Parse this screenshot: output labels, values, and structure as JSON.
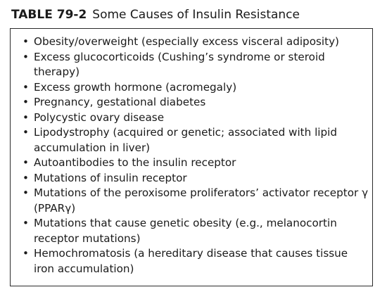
{
  "table": {
    "number": "TABLE 79-2",
    "caption": "Some Causes of Insulin Resistance",
    "bullet_glyph": "•",
    "items": [
      "Obesity/overweight (especially excess visceral adiposity)",
      "Excess glucocorticoids (Cushing’s syndrome or steroid therapy)",
      "Excess growth hormone (acromegaly)",
      "Pregnancy, gestational diabetes",
      "Polycystic ovary disease",
      "Lipodystrophy (acquired or genetic; associated with lipid accumulation in liver)",
      "Autoantibodies to the insulin receptor",
      "Mutations of insulin receptor",
      "Mutations of the peroxisome proliferators’ activator receptor γ (PPARγ)",
      "Mutations that cause genetic obesity (e.g., melanocortin receptor mutations)",
      "Hemochromatosis (a hereditary disease that causes tissue iron accumulation)"
    ]
  }
}
